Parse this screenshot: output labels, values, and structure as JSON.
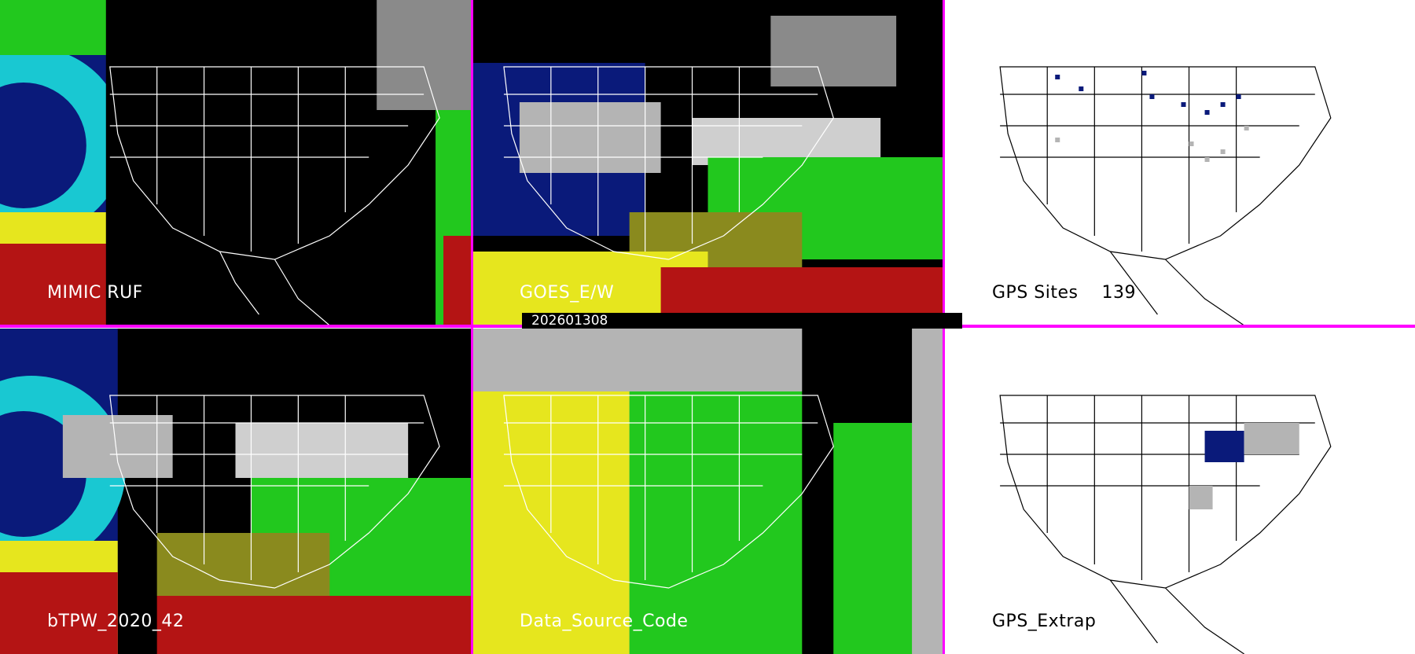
{
  "timestamp": "202601308",
  "panels": [
    {
      "id": "p1",
      "label": "MIMIC RUF",
      "theme": "moisture-partial"
    },
    {
      "id": "p2",
      "label": "GOES_E/W",
      "theme": "moisture-goes"
    },
    {
      "id": "p3",
      "label": "GPS Sites    139",
      "theme": "gps"
    },
    {
      "id": "p4",
      "label": "bTPW_2020_42",
      "theme": "moisture-full"
    },
    {
      "id": "p5",
      "label": "Data_Source_Code",
      "theme": "source-code"
    },
    {
      "id": "p6",
      "label": "GPS_Extrap",
      "theme": "gps-extrap"
    }
  ],
  "colors": {
    "separator": "#ff00ff",
    "background_dark": "#000000",
    "map_line_dark": "#ffffff",
    "map_line_light": "#000000",
    "deep_blue": "#0a1a7a",
    "cyan": "#19c8d2",
    "green": "#22c81e",
    "yellow": "#e6e61e",
    "red": "#b41414",
    "gray": "#b4b4b4",
    "navy_site": "#0a1a7a"
  }
}
